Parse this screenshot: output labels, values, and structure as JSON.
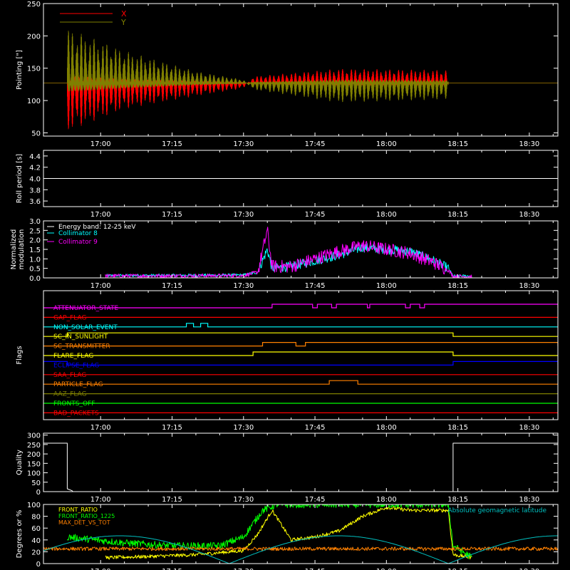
{
  "figure": {
    "x_tick_labels": [
      "17:00",
      "17:15",
      "17:30",
      "17:45",
      "18:00",
      "18:15",
      "18:30"
    ],
    "x_tick_minutes": [
      1020,
      1035,
      1050,
      1065,
      1080,
      1095,
      1110
    ],
    "x_range_minutes": [
      1008,
      1116
    ]
  },
  "chart_data": [
    {
      "type": "line",
      "panel": "pointing",
      "ylabel": "Pointing [\"]",
      "ylim": [
        45,
        250
      ],
      "yticks": [
        50,
        100,
        150,
        200,
        250
      ],
      "legend_placement": "top-left",
      "series": [
        {
          "name": "X",
          "color": "#ff0000",
          "kind": "oscillation",
          "baseline": 127,
          "start": 1013,
          "end": 1093,
          "envelope": [
            [
              1013,
              -75
            ],
            [
              1025,
              -40
            ],
            [
              1040,
              -20
            ],
            [
              1050,
              -8
            ],
            [
              1052,
              10
            ],
            [
              1070,
              22
            ],
            [
              1093,
              20
            ]
          ],
          "period_min": 0.9
        },
        {
          "name": "Y",
          "color": "#808000",
          "kind": "oscillation",
          "baseline": 127,
          "start": 1013,
          "end": 1093,
          "envelope": [
            [
              1013,
              85
            ],
            [
              1025,
              50
            ],
            [
              1040,
              18
            ],
            [
              1050,
              5
            ],
            [
              1052,
              -10
            ],
            [
              1070,
              -30
            ],
            [
              1093,
              -25
            ]
          ],
          "period_min": 0.9
        }
      ]
    },
    {
      "type": "line",
      "panel": "roll-period",
      "ylabel": "Roll period [s]",
      "ylim": [
        3.5,
        4.5
      ],
      "yticks": [
        3.6,
        3.8,
        4.0,
        4.2,
        4.4
      ],
      "series": [
        {
          "color": "#ffffff",
          "kind": "constant",
          "value": 4.0,
          "start": 1008,
          "end": 1116
        }
      ]
    },
    {
      "type": "line",
      "panel": "modulation",
      "ylabel": "Normalized modulation",
      "ylim": [
        0,
        3.0
      ],
      "yticks": [
        0,
        0.5,
        1.0,
        1.5,
        2.0,
        2.5,
        3.0
      ],
      "legend_title": "Energy band: 12-25 keV",
      "series": [
        {
          "name": "Collimator 8",
          "color": "#00ffff",
          "kind": "noisy",
          "profile": [
            [
              1021,
              0.12
            ],
            [
              1050,
              0.15
            ],
            [
              1053,
              0.3
            ],
            [
              1055,
              1.5
            ],
            [
              1056,
              0.5
            ],
            [
              1060,
              0.6
            ],
            [
              1065,
              0.9
            ],
            [
              1070,
              1.2
            ],
            [
              1075,
              1.6
            ],
            [
              1080,
              1.5
            ],
            [
              1085,
              1.4
            ],
            [
              1090,
              0.9
            ],
            [
              1093,
              0.5
            ],
            [
              1094,
              0.1
            ],
            [
              1098,
              0.1
            ]
          ],
          "spread": 0.5
        },
        {
          "name": "Collimator 9",
          "color": "#ff00ff",
          "kind": "noisy",
          "profile": [
            [
              1021,
              0.1
            ],
            [
              1050,
              0.12
            ],
            [
              1053,
              0.3
            ],
            [
              1055,
              2.5
            ],
            [
              1056,
              0.6
            ],
            [
              1060,
              0.6
            ],
            [
              1065,
              1.0
            ],
            [
              1070,
              1.4
            ],
            [
              1075,
              1.7
            ],
            [
              1080,
              1.5
            ],
            [
              1085,
              1.3
            ],
            [
              1090,
              0.8
            ],
            [
              1093,
              0.4
            ],
            [
              1094,
              0.08
            ],
            [
              1098,
              0.08
            ]
          ],
          "spread": 0.7
        }
      ]
    },
    {
      "type": "line",
      "panel": "flags",
      "ylabel": "Flags",
      "flags": [
        {
          "name": "ATTENUATOR_STATE",
          "color": "#ff00ff",
          "on": [
            [
              1056,
              1064.5
            ],
            [
              1065.5,
              1068.5
            ],
            [
              1069.5,
              1076
            ],
            [
              1076.5,
              1084
            ],
            [
              1085,
              1087
            ],
            [
              1088,
              1116
            ]
          ]
        },
        {
          "name": "GAP_FLAG",
          "color": "#ff0000",
          "on": []
        },
        {
          "name": "NON_SOLAR_EVENT",
          "color": "#00ffff",
          "on": [
            [
              1038,
              1039.5
            ],
            [
              1041,
              1042.5
            ]
          ]
        },
        {
          "name": "SC_IN_SUNLIGHT",
          "color": "#ffff00",
          "on": [
            [
              1013,
              1094
            ]
          ]
        },
        {
          "name": "SC_TRANSMITTER",
          "color": "#ff8000",
          "on": [
            [
              1054,
              1061
            ],
            [
              1063,
              1116
            ]
          ]
        },
        {
          "name": "FLARE_FLAG",
          "color": "#ffff00",
          "on": [
            [
              1052,
              1094
            ]
          ]
        },
        {
          "name": "ECLIPSE_FLAG",
          "color": "#0000ff",
          "on": [
            [
              1008,
              1013
            ],
            [
              1094,
              1116
            ]
          ]
        },
        {
          "name": "SAA_FLAG",
          "color": "#ff0000",
          "on": []
        },
        {
          "name": "PARTICLE_FLAG",
          "color": "#ff8000",
          "on": [
            [
              1068,
              1074
            ]
          ]
        },
        {
          "name": "AAZ_FLAG",
          "color": "#808000",
          "on": []
        },
        {
          "name": "FRONTS_OFF",
          "color": "#00ff00",
          "on": []
        },
        {
          "name": "BAD_PACKETS",
          "color": "#ff0000",
          "on": []
        }
      ]
    },
    {
      "type": "line",
      "panel": "quality",
      "ylabel": "Quality",
      "ylim": [
        0,
        310
      ],
      "yticks": [
        0,
        50,
        100,
        150,
        200,
        250,
        300
      ],
      "series": [
        {
          "color": "#ffffff",
          "kind": "steps",
          "points": [
            [
              1008,
              257
            ],
            [
              1013,
              257
            ],
            [
              1013,
              15
            ],
            [
              1014,
              5
            ],
            [
              1014.2,
              0
            ],
            [
              1094,
              0
            ],
            [
              1094,
              257
            ],
            [
              1116,
              257
            ]
          ]
        }
      ]
    },
    {
      "type": "line",
      "panel": "ratios",
      "ylabel": "Degrees or %",
      "ylim": [
        0,
        100
      ],
      "yticks": [
        0,
        20,
        40,
        60,
        80,
        100
      ],
      "annotation": "Absolute geomagnetic latitude",
      "series": [
        {
          "name": "FRONT_RATIO",
          "color": "#ffff00",
          "kind": "noisy",
          "profile": [
            [
              1021,
              10
            ],
            [
              1030,
              12
            ],
            [
              1040,
              15
            ],
            [
              1050,
              22
            ],
            [
              1053,
              50
            ],
            [
              1056,
              90
            ],
            [
              1060,
              40
            ],
            [
              1065,
              45
            ],
            [
              1070,
              55
            ],
            [
              1075,
              80
            ],
            [
              1080,
              95
            ],
            [
              1085,
              90
            ],
            [
              1093,
              90
            ],
            [
              1094,
              15
            ],
            [
              1098,
              10
            ]
          ],
          "spread": 6
        },
        {
          "name": "FRONT_RATIO_1225",
          "color": "#00ff00",
          "kind": "noisy",
          "profile": [
            [
              1013,
              45
            ],
            [
              1025,
              35
            ],
            [
              1035,
              30
            ],
            [
              1045,
              30
            ],
            [
              1050,
              45
            ],
            [
              1054,
              90
            ],
            [
              1057,
              100
            ],
            [
              1093,
              100
            ],
            [
              1094,
              30
            ],
            [
              1098,
              10
            ]
          ],
          "spread": 12
        },
        {
          "name": "MAX_DET_VS_TOT",
          "color": "#ff8000",
          "kind": "noisy",
          "profile": [
            [
              1008,
              25
            ],
            [
              1116,
              25
            ]
          ],
          "spread": 6
        },
        {
          "color": "#00c0c0",
          "kind": "abs-sine",
          "amplitude": 47,
          "period_min": 46,
          "zero_min": 1047
        }
      ]
    }
  ]
}
